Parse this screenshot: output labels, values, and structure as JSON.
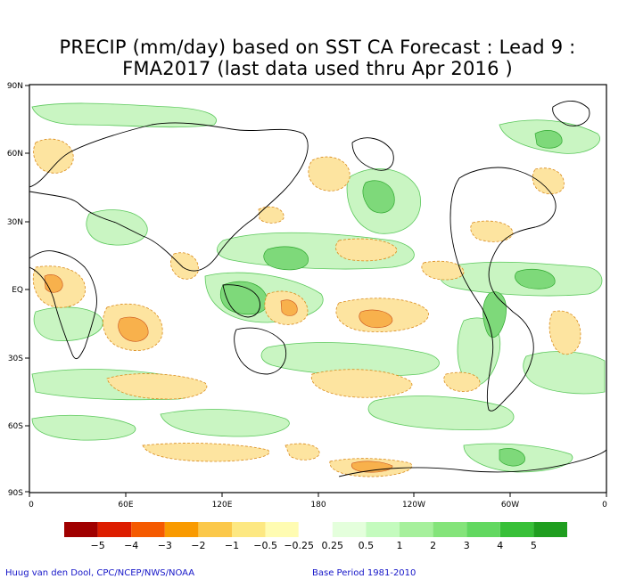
{
  "title": {
    "line1": "PRECIP (mm/day) based on SST CA Forecast : Lead 9 :",
    "line2": "FMA2017 (last data used thru Apr 2016 )"
  },
  "axes": {
    "lat_labels": [
      "90N",
      "60N",
      "30N",
      "EQ",
      "30S",
      "60S",
      "90S"
    ],
    "lon_labels": [
      "0",
      "60E",
      "120E",
      "180",
      "120W",
      "60W",
      "0"
    ]
  },
  "colorbar": {
    "colors": [
      "#a00000",
      "#dd1d00",
      "#f55a00",
      "#f99a00",
      "#fbc84a",
      "#fde882",
      "#fffcb2",
      "#ffffff",
      "#e4ffdc",
      "#c4fbbe",
      "#a6f09c",
      "#84e47a",
      "#62d860",
      "#38c038",
      "#1f9e1f"
    ],
    "labels": [
      "−5",
      "−4",
      "−3",
      "−2",
      "−1",
      "−0.5",
      "−0.25",
      "0.25",
      "0.5",
      "1",
      "2",
      "3",
      "4",
      "5"
    ]
  },
  "credits": {
    "left": "Huug van den Dool, CPC/NCEP/NWS/NOAA",
    "right": "Base Period 1981-2010"
  }
}
